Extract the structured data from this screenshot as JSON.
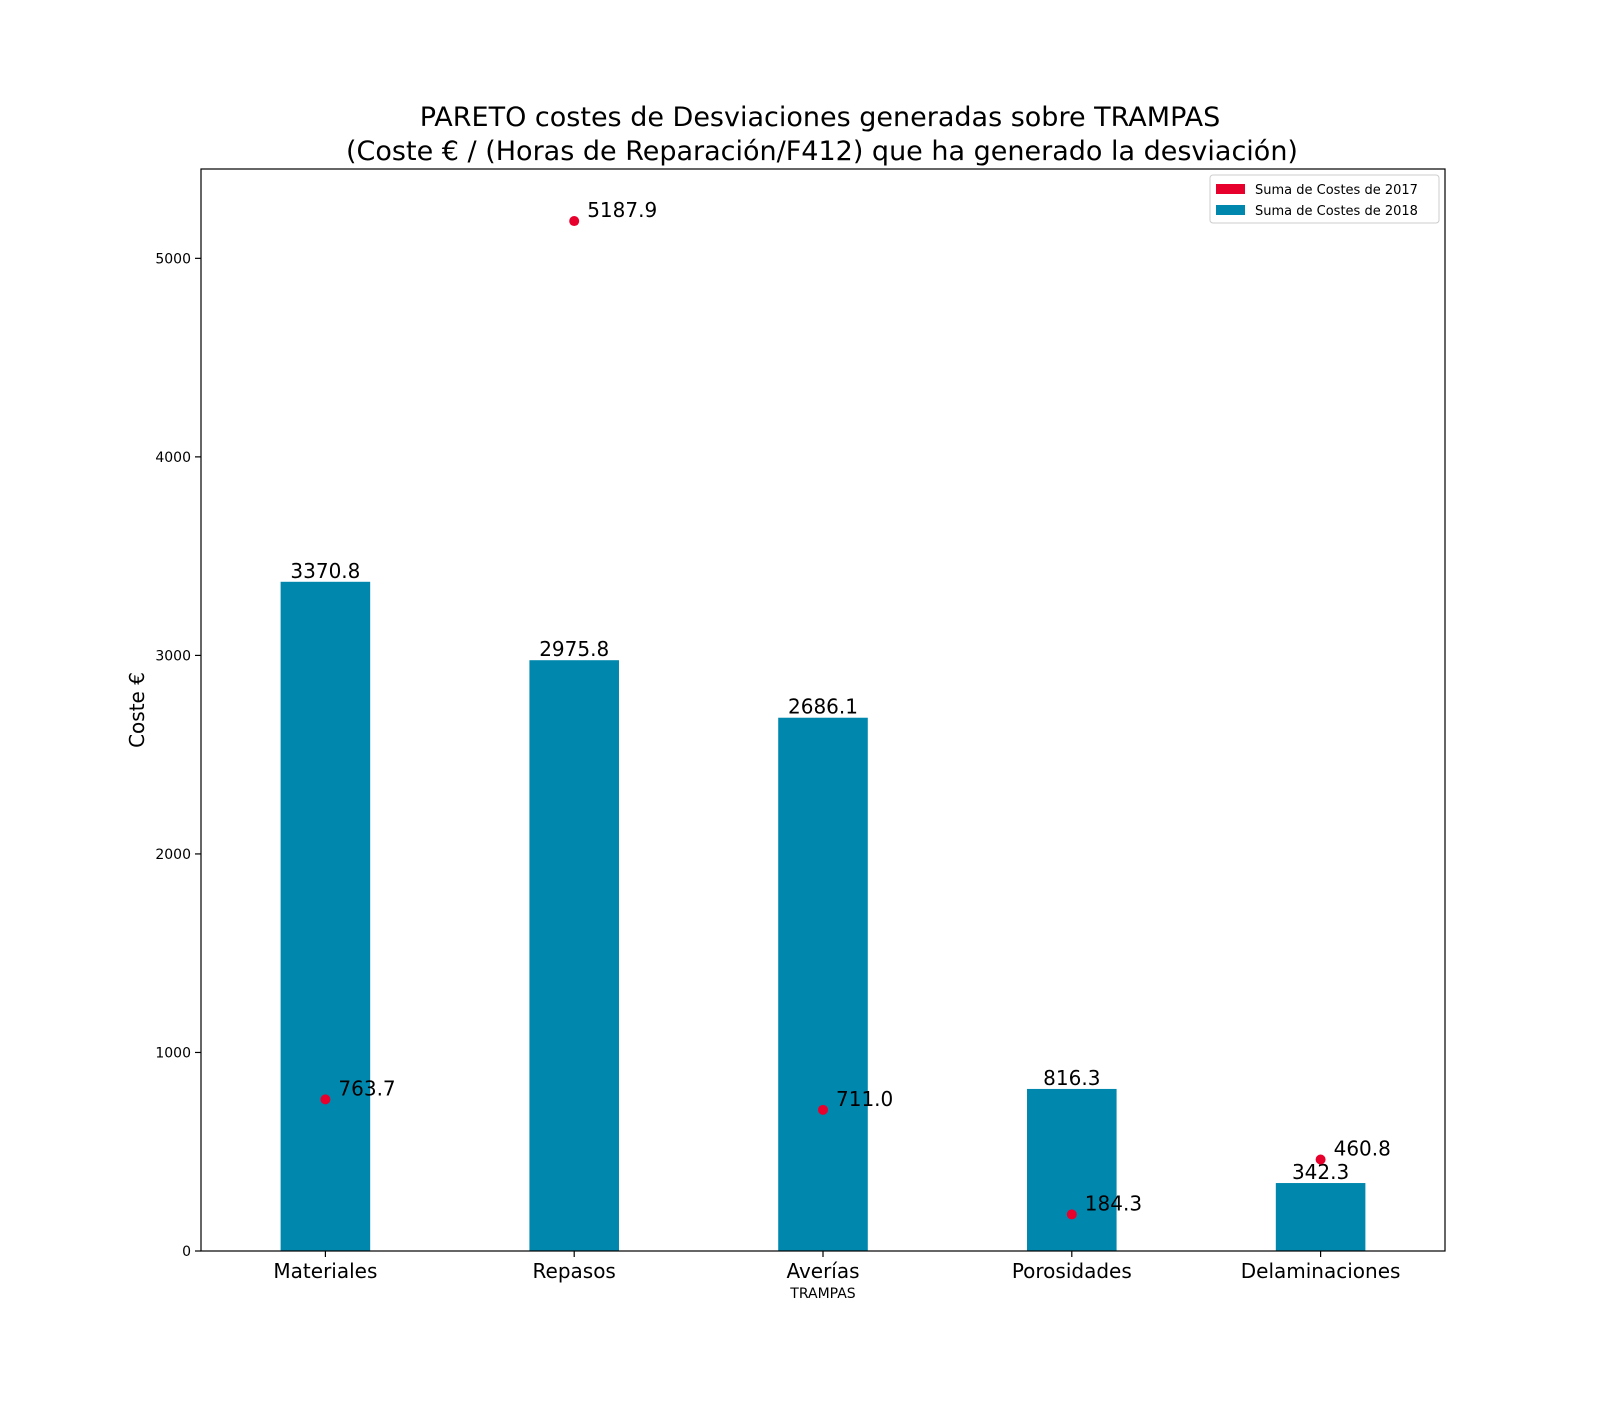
{
  "chart_data": {
    "type": "bar",
    "title": "PARETO costes de Desviaciones  generadas  sobre TRAMPAS",
    "subtitle": "(Coste € / (Horas de Reparación/F412) que ha generado la desviación)",
    "xlabel": "TRAMPAS",
    "ylabel": "Coste €",
    "categories": [
      "Materiales",
      "Repasos",
      "Averías",
      "Porosidades",
      "Delaminaciones"
    ],
    "ylim": [
      0,
      5450
    ],
    "yticks": [
      0,
      1000,
      2000,
      3000,
      4000,
      5000
    ],
    "grid": false,
    "legend_position": "top-right",
    "series": [
      {
        "name": "Suma de Costes de 2017",
        "kind": "scatter",
        "color": "#e8002d",
        "values": [
          763.7,
          5187.9,
          711.0,
          184.3,
          460.8
        ],
        "labels": [
          "763.7",
          "5187.9",
          "711.0",
          "184.3",
          "460.8"
        ]
      },
      {
        "name": "Suma de Costes de 2018",
        "kind": "bar",
        "color": "#0087ae",
        "values": [
          3370.8,
          2975.8,
          2686.1,
          816.3,
          342.3
        ],
        "labels": [
          "3370.8",
          "2975.8",
          "2686.1",
          "816.3",
          "342.3"
        ]
      }
    ]
  }
}
